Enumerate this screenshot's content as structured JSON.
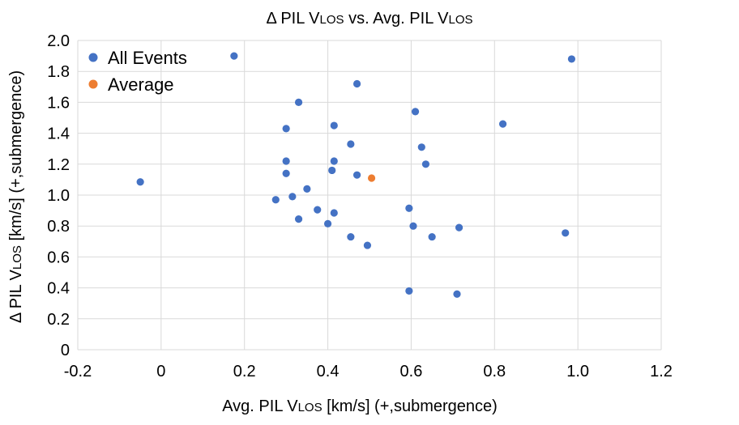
{
  "chart_data": {
    "type": "scatter",
    "title": {
      "prefix": "Δ PIL V",
      "sub": "LOS",
      "middle": " vs. Avg. PIL V",
      "sub2": "LOS"
    },
    "xlabel": {
      "prefix": "Avg. PIL V",
      "sub": "LOS",
      "suffix": " [km/s] (+,submergence)"
    },
    "ylabel": {
      "prefix": "Δ PIL V",
      "sub": "LOS",
      "suffix": " [km/s] (+,submergence)"
    },
    "xlim": [
      -0.2,
      1.2
    ],
    "ylim": [
      0,
      2.0
    ],
    "xticks": [
      "-0.2",
      "0",
      "0.2",
      "0.4",
      "0.6",
      "0.8",
      "1.0",
      "1.2"
    ],
    "yticks": [
      "0",
      "0.2",
      "0.4",
      "0.6",
      "0.8",
      "1.0",
      "1.2",
      "1.4",
      "1.6",
      "1.8",
      "2.0"
    ],
    "grid": true,
    "legend_position": "top-left",
    "colors": {
      "series_all": "#4472C4",
      "series_avg": "#ED7D31",
      "grid": "#d9d9d9"
    },
    "series": [
      {
        "name": "All Events",
        "x": [
          0.175,
          0.985,
          0.47,
          0.33,
          0.61,
          0.82,
          0.3,
          0.415,
          0.455,
          0.625,
          0.3,
          0.415,
          0.635,
          0.41,
          0.3,
          0.47,
          -0.05,
          0.35,
          0.315,
          0.275,
          0.595,
          0.375,
          0.415,
          0.33,
          0.4,
          0.605,
          0.715,
          0.455,
          0.65,
          0.97,
          0.495,
          0.595,
          0.71
        ],
        "y": [
          1.9,
          1.88,
          1.72,
          1.6,
          1.54,
          1.46,
          1.43,
          1.45,
          1.33,
          1.31,
          1.22,
          1.22,
          1.2,
          1.16,
          1.14,
          1.13,
          1.085,
          1.04,
          0.99,
          0.97,
          0.915,
          0.905,
          0.885,
          0.845,
          0.815,
          0.8,
          0.79,
          0.73,
          0.73,
          0.755,
          0.675,
          0.38,
          0.36
        ]
      },
      {
        "name": "Average",
        "x": [
          0.505
        ],
        "y": [
          1.11
        ]
      }
    ]
  }
}
